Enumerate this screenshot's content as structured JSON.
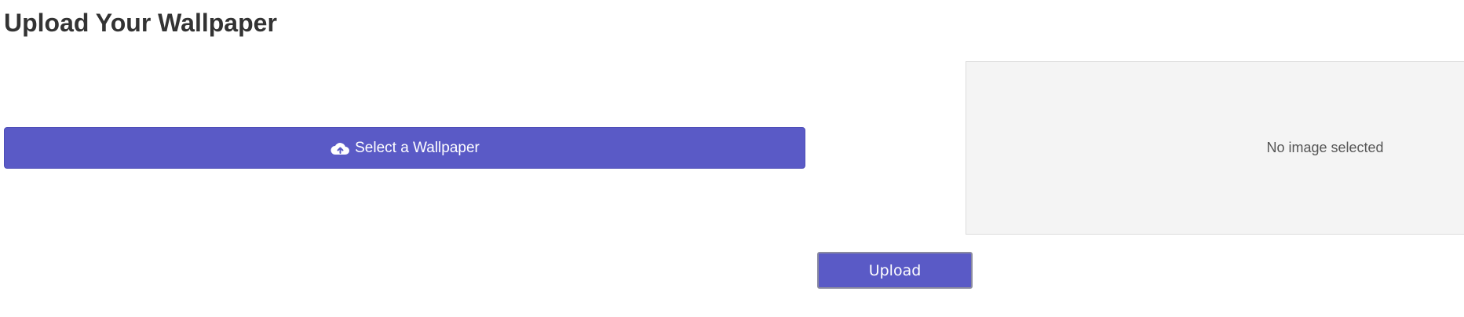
{
  "page": {
    "title": "Upload Your Wallpaper"
  },
  "select": {
    "label": "Select a Wallpaper",
    "icon": "cloud-upload-icon"
  },
  "preview": {
    "empty_text": "No image selected"
  },
  "upload": {
    "label": "Upload"
  },
  "colors": {
    "accent": "#5a5ac6",
    "preview_background": "#f4f4f4",
    "title_text": "#333333"
  }
}
